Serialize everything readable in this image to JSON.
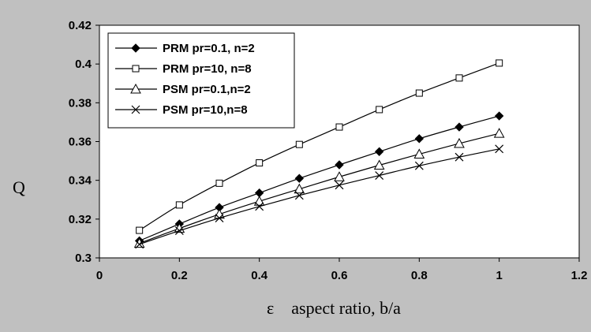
{
  "chart_data": {
    "type": "line",
    "title": "",
    "xlabel": "ε    aspect ratio, b/a",
    "ylabel": "Q",
    "xlim": [
      0,
      1.2
    ],
    "ylim": [
      0.3,
      0.42
    ],
    "x_ticks": [
      "0",
      "0.2",
      "0.4",
      "0.6",
      "0.8",
      "1",
      "1.2"
    ],
    "y_ticks": [
      "0.3",
      "0.32",
      "0.34",
      "0.36",
      "0.38",
      "0.4",
      "0.42"
    ],
    "grid": false,
    "legend_position": "top-left",
    "background": "#c0c0c0",
    "plot_background": "#ffffff",
    "line_color": "#000000",
    "x": [
      0.1,
      0.2,
      0.3,
      0.4,
      0.5,
      0.6,
      0.7,
      0.8,
      0.9,
      1.0
    ],
    "series": [
      {
        "name": "PRM pr=0.1, n=2",
        "marker": "filled-diamond",
        "values": [
          0.3088,
          0.3175,
          0.326,
          0.3335,
          0.341,
          0.348,
          0.3548,
          0.3615,
          0.3675,
          0.3732
        ]
      },
      {
        "name": "PRM pr=10, n=8",
        "marker": "open-square",
        "values": [
          0.3142,
          0.3273,
          0.3385,
          0.349,
          0.3585,
          0.3675,
          0.3765,
          0.385,
          0.3928,
          0.4005
        ]
      },
      {
        "name": "PSM pr=0.1,n=2",
        "marker": "open-triangle",
        "values": [
          0.3075,
          0.3152,
          0.3225,
          0.3292,
          0.3355,
          0.3418,
          0.3478,
          0.3535,
          0.359,
          0.3642
        ]
      },
      {
        "name": "PSM pr=10,n=8",
        "marker": "x-cross",
        "values": [
          0.307,
          0.314,
          0.3205,
          0.3265,
          0.3322,
          0.3375,
          0.3425,
          0.3475,
          0.352,
          0.3562
        ]
      }
    ]
  }
}
